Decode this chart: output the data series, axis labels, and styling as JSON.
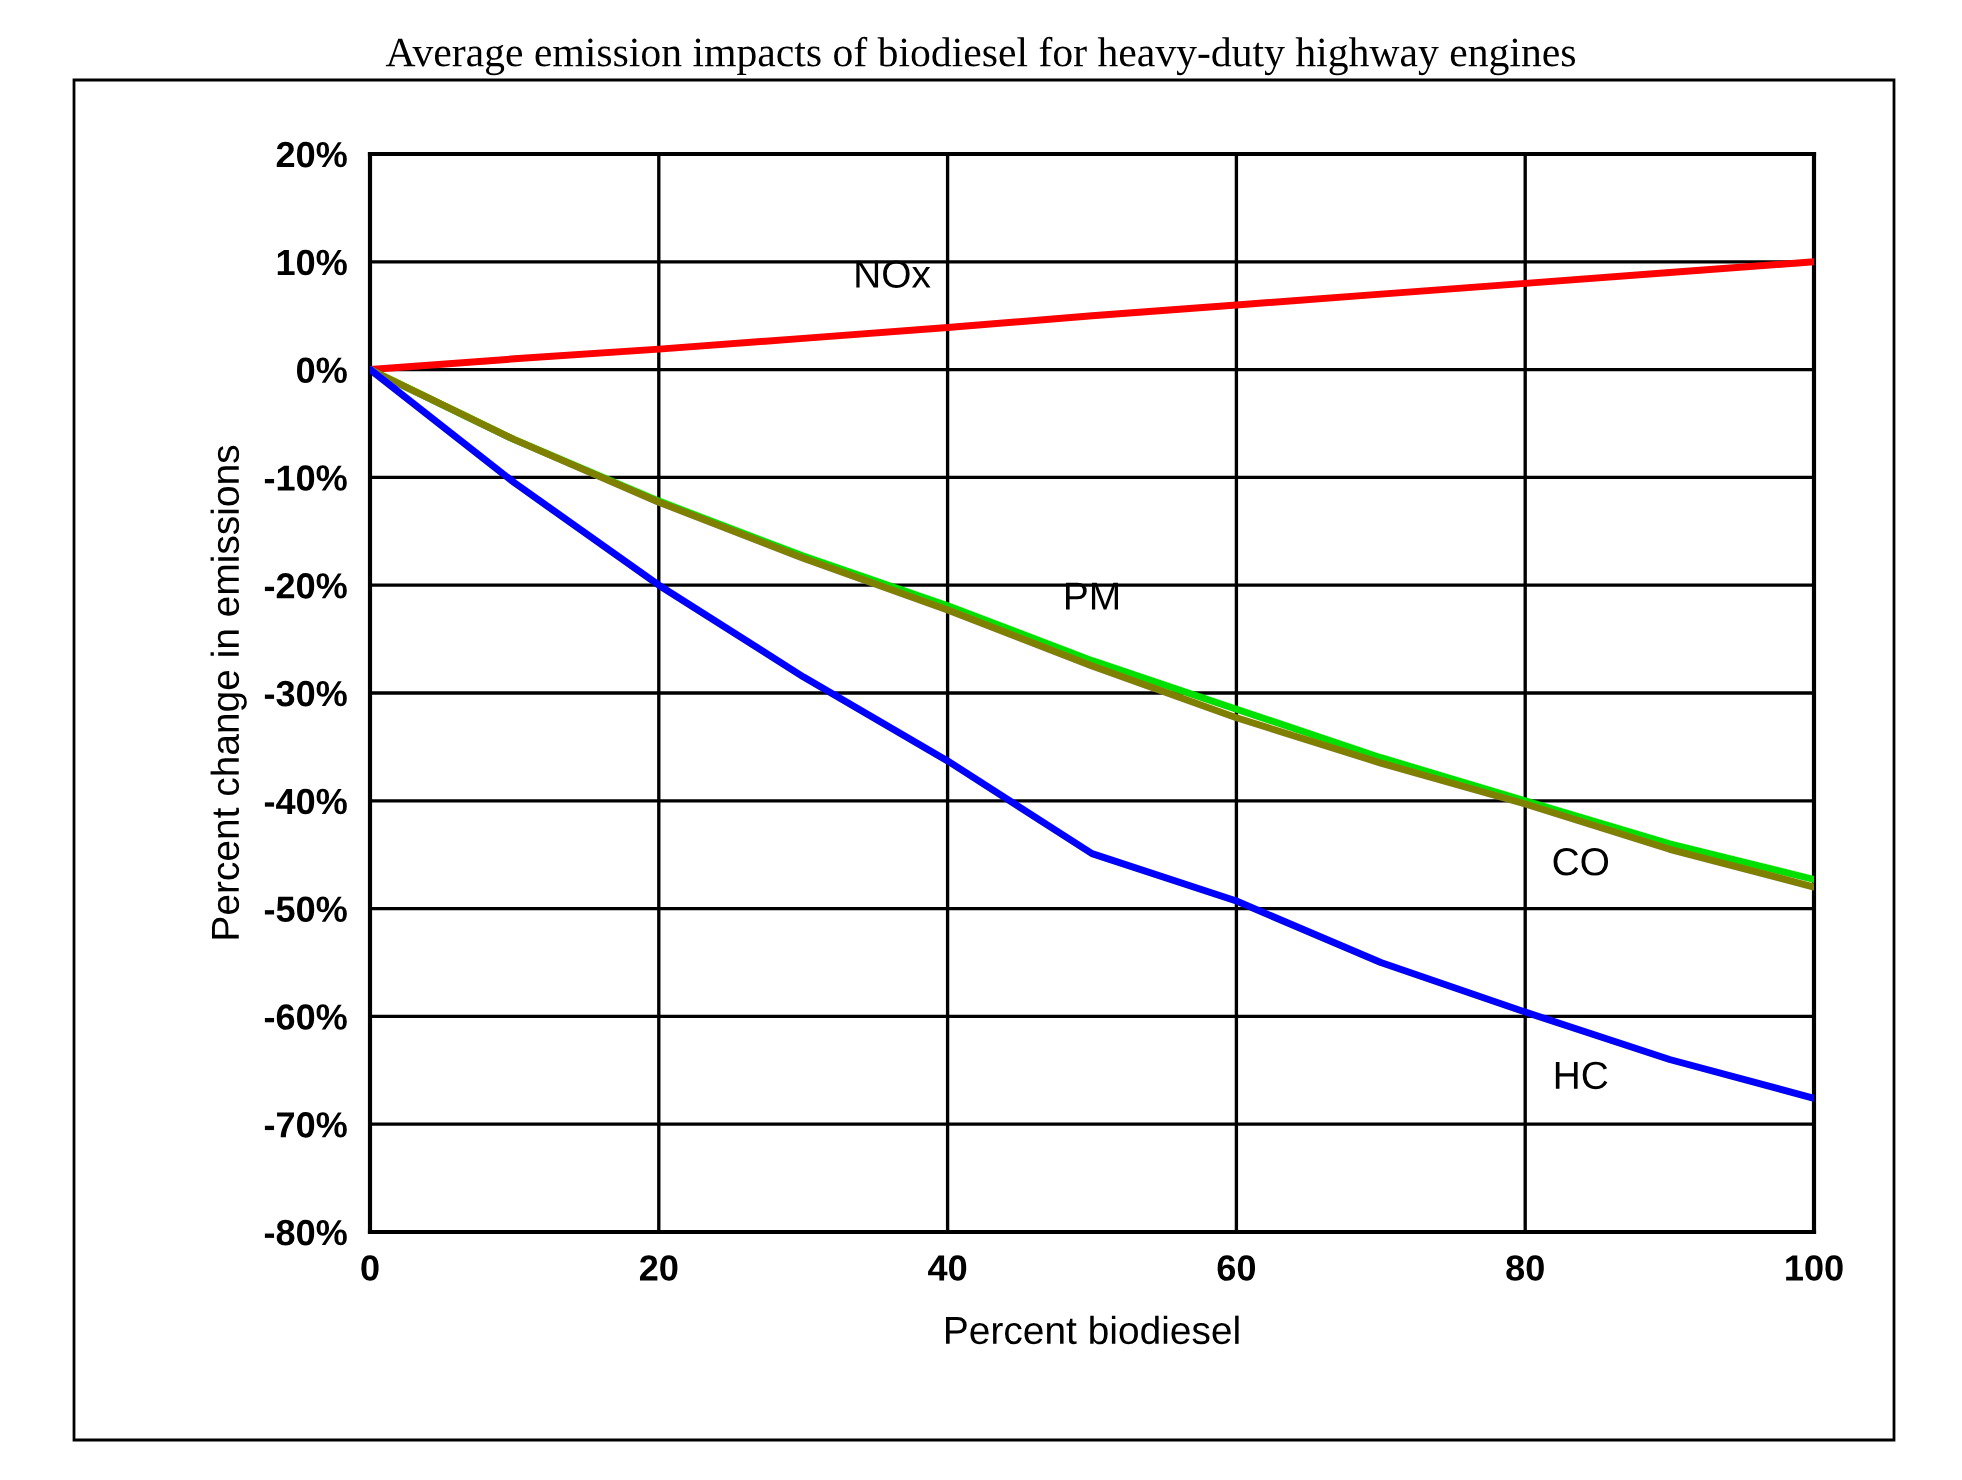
{
  "chart_data": {
    "type": "line",
    "title": "Average emission impacts of biodiesel for heavy-duty highway engines",
    "xlabel": "Percent biodiesel",
    "ylabel": "Percent change in emissions",
    "x": [
      0,
      10,
      20,
      30,
      40,
      50,
      60,
      70,
      80,
      90,
      100
    ],
    "series": [
      {
        "name": "NOx",
        "color": "#ff0000",
        "values": [
          0,
          1,
          1.9,
          2.9,
          3.9,
          5,
          6,
          7,
          8,
          9,
          10
        ]
      },
      {
        "name": "PM",
        "color": "#00e000",
        "values": [
          0,
          -6.5,
          -12.2,
          -17.3,
          -21.9,
          -27,
          -31.5,
          -36,
          -40,
          -44,
          -47.3
        ]
      },
      {
        "name": "CO",
        "color": "#808000",
        "values": [
          0,
          -6.5,
          -12.3,
          -17.5,
          -22.3,
          -27.5,
          -32.3,
          -36.5,
          -40.3,
          -44.5,
          -48
        ]
      },
      {
        "name": "HC",
        "color": "#0000ff",
        "values": [
          0,
          -10.5,
          -20,
          -28.5,
          -36.3,
          -44.9,
          -49.3,
          -55,
          -59.6,
          -64,
          -67.6
        ]
      }
    ],
    "xlim": [
      0,
      100
    ],
    "xticks": [
      0,
      20,
      40,
      60,
      80,
      100
    ],
    "ylim": [
      -80,
      20
    ],
    "yticks": [
      {
        "value": -80,
        "label": "-80%"
      },
      {
        "value": -70,
        "label": "-70%"
      },
      {
        "value": -60,
        "label": "-60%"
      },
      {
        "value": -50,
        "label": "-50%"
      },
      {
        "value": -40,
        "label": "-40%"
      },
      {
        "value": -30,
        "label": "-30%"
      },
      {
        "value": -20,
        "label": "-20%"
      },
      {
        "value": -10,
        "label": "-10%"
      },
      {
        "value": 0,
        "label": "0%"
      },
      {
        "value": 10,
        "label": "10%"
      },
      {
        "value": 20,
        "label": "20%"
      }
    ],
    "grid": true,
    "marker": "none",
    "line_style": "solid"
  }
}
